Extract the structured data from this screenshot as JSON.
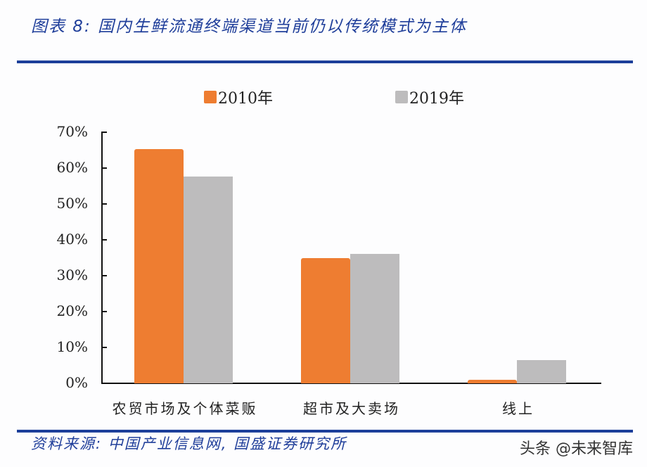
{
  "header": {
    "title": "图表 8:  国内生鲜流通终端渠道当前仍以传统模式为主体"
  },
  "footer": {
    "source": "资料来源:  中国产业信息网,  国盛证券研究所",
    "watermark": "头条 @未来智库"
  },
  "colors": {
    "series_2010": "#ee7d31",
    "series_2019": "#bdbcbd",
    "accent": "#1c3f9a"
  },
  "chart_data": {
    "type": "bar",
    "title": "国内生鲜流通终端渠道当前仍以传统模式为主体",
    "categories": [
      "农贸市场及个体菜贩",
      "超市及大卖场",
      "线上"
    ],
    "series": [
      {
        "name": "2010年",
        "values": [
          65.3,
          34.9,
          1.0
        ]
      },
      {
        "name": "2019年",
        "values": [
          57.6,
          36.1,
          6.5
        ]
      }
    ],
    "xlabel": "",
    "ylabel": "",
    "ylim": [
      0,
      70
    ],
    "yticks": [
      "0%",
      "10%",
      "20%",
      "30%",
      "40%",
      "50%",
      "60%",
      "70%"
    ],
    "legend_position": "top",
    "grid": false
  }
}
